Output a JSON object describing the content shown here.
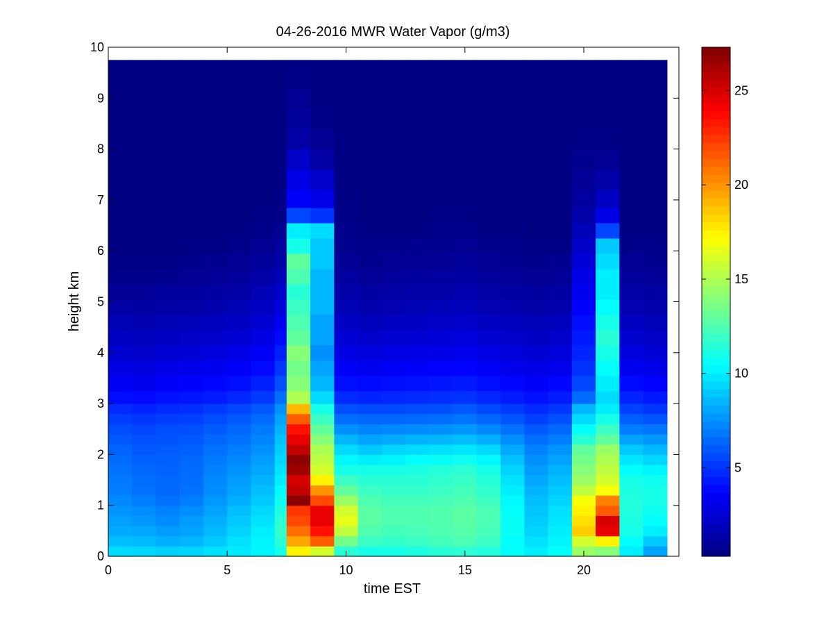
{
  "chart_data": {
    "type": "heatmap",
    "title": "04-26-2016 MWR Water Vapor (g/m3)",
    "xlabel": "time EST",
    "ylabel": "height km",
    "xlim": [
      0,
      24
    ],
    "ylim": [
      0,
      10
    ],
    "x_ticks": [
      0,
      5,
      10,
      15,
      20
    ],
    "y_ticks": [
      0,
      1,
      2,
      3,
      4,
      5,
      6,
      7,
      8,
      9,
      10
    ],
    "colormap": "jet",
    "colorbar": {
      "min": 0.3,
      "max": 27.3,
      "ticks": [
        5,
        10,
        15,
        20,
        25
      ]
    },
    "time_bin_edges": [
      0,
      1,
      2,
      3,
      4,
      5,
      6,
      7,
      7.5,
      8.5,
      9.5,
      10.5,
      11.5,
      12.5,
      13.5,
      14.5,
      15.5,
      16.5,
      17.5,
      18.5,
      19.5,
      20.5,
      21.5,
      22.5,
      23.5
    ],
    "height_levels_km": [
      0.1,
      0.3,
      0.5,
      0.7,
      0.9,
      1.1,
      1.3,
      1.5,
      1.7,
      1.9,
      2.1,
      2.3,
      2.5,
      2.7,
      2.9,
      3.1,
      3.4,
      3.7,
      4.0,
      4.3,
      4.6,
      4.9,
      5.2,
      5.5,
      5.8,
      6.1,
      6.4,
      6.7,
      7.0,
      7.4,
      7.8,
      8.2,
      8.6,
      9.0,
      9.4
    ],
    "height_bin_edges_km": [
      0,
      0.2,
      0.4,
      0.6,
      0.8,
      1.0,
      1.2,
      1.4,
      1.6,
      1.8,
      2.0,
      2.2,
      2.4,
      2.6,
      2.8,
      3.0,
      3.25,
      3.55,
      3.85,
      4.15,
      4.45,
      4.75,
      5.05,
      5.35,
      5.65,
      5.95,
      6.25,
      6.55,
      6.85,
      7.2,
      7.6,
      8.0,
      8.4,
      8.8,
      9.2,
      9.75
    ],
    "values_by_time_column": [
      [
        9.5,
        8.7,
        8.2,
        7.9,
        7.6,
        7.3,
        7.0,
        6.9,
        6.7,
        6.5,
        6.3,
        6.0,
        5.7,
        5.3,
        4.8,
        4.0,
        3.4,
        2.9,
        2.4,
        2.0,
        1.7,
        1.3,
        0.9,
        0.6,
        0.5,
        0.4,
        0.4,
        0.4,
        0.4,
        0.4,
        0.4,
        0.4,
        0.4,
        0.4,
        0.4
      ],
      [
        9.4,
        8.6,
        8.1,
        7.7,
        7.4,
        7.0,
        6.7,
        6.6,
        6.4,
        6.2,
        6.0,
        5.8,
        5.5,
        5.1,
        4.6,
        3.9,
        3.3,
        2.8,
        2.3,
        1.9,
        1.6,
        1.2,
        0.9,
        0.6,
        0.5,
        0.4,
        0.4,
        0.4,
        0.4,
        0.4,
        0.4,
        0.4,
        0.4,
        0.4,
        0.4
      ],
      [
        9.2,
        8.3,
        7.8,
        7.4,
        7.1,
        6.7,
        6.4,
        6.4,
        6.3,
        6.2,
        6.1,
        5.9,
        5.7,
        5.3,
        4.8,
        4.1,
        3.5,
        3.0,
        2.5,
        2.1,
        1.7,
        1.3,
        1.0,
        0.7,
        0.5,
        0.4,
        0.4,
        0.4,
        0.4,
        0.4,
        0.4,
        0.4,
        0.4,
        0.4,
        0.4
      ],
      [
        9.3,
        8.5,
        8.0,
        7.8,
        7.4,
        7.0,
        6.7,
        6.6,
        6.5,
        6.4,
        6.2,
        6.0,
        5.8,
        5.4,
        4.9,
        4.2,
        3.6,
        3.1,
        2.6,
        2.2,
        1.8,
        1.4,
        1.1,
        0.8,
        0.6,
        0.5,
        0.4,
        0.4,
        0.4,
        0.4,
        0.4,
        0.4,
        0.4,
        0.4,
        0.4
      ],
      [
        9.6,
        9.0,
        8.6,
        8.3,
        8.0,
        7.7,
        7.4,
        7.3,
        7.1,
        6.9,
        6.7,
        6.4,
        6.1,
        5.7,
        5.2,
        4.4,
        3.8,
        3.3,
        2.8,
        2.3,
        1.9,
        1.5,
        1.2,
        0.9,
        0.7,
        0.5,
        0.4,
        0.4,
        0.4,
        0.4,
        0.4,
        0.4,
        0.4,
        0.4,
        0.4
      ],
      [
        9.9,
        9.6,
        9.3,
        9.0,
        8.7,
        8.3,
        8.0,
        7.8,
        7.6,
        7.3,
        7.0,
        6.7,
        6.4,
        6.0,
        5.5,
        4.7,
        4.0,
        3.5,
        3.0,
        2.5,
        2.1,
        1.7,
        1.3,
        1.0,
        0.8,
        0.6,
        0.5,
        0.4,
        0.4,
        0.4,
        0.4,
        0.4,
        0.4,
        0.4,
        0.4
      ],
      [
        10.2,
        10.2,
        10.0,
        9.7,
        9.4,
        9.0,
        8.7,
        8.4,
        8.1,
        7.8,
        7.5,
        7.2,
        6.9,
        6.5,
        6.0,
        5.2,
        4.5,
        3.9,
        3.4,
        2.9,
        2.5,
        2.1,
        1.7,
        1.3,
        1.0,
        0.8,
        0.6,
        0.5,
        0.4,
        0.4,
        0.4,
        0.4,
        0.4,
        0.4,
        0.4
      ],
      [
        11.0,
        11.5,
        11.8,
        11.6,
        11.2,
        10.8,
        10.4,
        10.0,
        9.7,
        9.4,
        9.1,
        8.8,
        8.4,
        8.0,
        7.5,
        6.6,
        5.8,
        5.1,
        4.5,
        3.9,
        3.3,
        2.8,
        2.3,
        1.8,
        1.4,
        1.1,
        0.8,
        0.6,
        0.5,
        0.4,
        0.4,
        0.4,
        0.4,
        0.4,
        0.4
      ],
      [
        17.5,
        19.5,
        21.0,
        22.0,
        22.5,
        27.0,
        25.5,
        25.0,
        26.5,
        27.0,
        25.5,
        24.5,
        23.5,
        21.5,
        19.0,
        15.0,
        14.0,
        13.5,
        14.0,
        13.0,
        12.5,
        12.0,
        11.5,
        12.5,
        13.0,
        11.0,
        10.0,
        5.5,
        3.5,
        3.0,
        2.2,
        1.3,
        1.0,
        0.8,
        0.5
      ],
      [
        16.0,
        21.5,
        23.5,
        24.5,
        24.5,
        22.0,
        20.0,
        17.5,
        16.0,
        15.5,
        15.0,
        14.0,
        13.0,
        12.0,
        11.0,
        9.5,
        8.5,
        8.0,
        7.5,
        8.0,
        8.0,
        8.5,
        8.5,
        8.5,
        9.0,
        9.0,
        9.5,
        5.0,
        3.0,
        2.3,
        1.3,
        0.8,
        0.5,
        0.4,
        0.4
      ],
      [
        11.5,
        13.5,
        15.5,
        16.5,
        16.0,
        14.5,
        13.0,
        12.0,
        11.0,
        10.3,
        9.5,
        8.5,
        7.5,
        6.6,
        5.8,
        4.8,
        4.0,
        3.4,
        2.9,
        2.5,
        2.1,
        1.7,
        1.4,
        1.1,
        0.9,
        0.7,
        0.6,
        0.5,
        0.5,
        0.4,
        0.4,
        0.4,
        0.4,
        0.4,
        0.4
      ],
      [
        11.0,
        12.0,
        12.5,
        12.8,
        12.8,
        12.5,
        12.0,
        11.5,
        11.0,
        10.0,
        9.0,
        8.0,
        7.2,
        6.4,
        5.6,
        4.6,
        3.9,
        3.3,
        2.8,
        2.3,
        1.9,
        1.5,
        1.2,
        0.9,
        0.7,
        0.6,
        0.5,
        0.4,
        0.4,
        0.4,
        0.4,
        0.4,
        0.4,
        0.4,
        0.4
      ],
      [
        11.0,
        11.8,
        12.2,
        12.5,
        12.5,
        12.2,
        11.8,
        11.5,
        11.0,
        10.2,
        9.3,
        8.2,
        7.3,
        6.4,
        5.6,
        4.7,
        4.0,
        3.4,
        2.9,
        2.4,
        2.0,
        1.6,
        1.3,
        1.0,
        0.8,
        0.6,
        0.5,
        0.4,
        0.4,
        0.4,
        0.4,
        0.4,
        0.4,
        0.4,
        0.4
      ],
      [
        11.2,
        12.0,
        12.3,
        12.5,
        12.5,
        12.2,
        11.8,
        11.5,
        11.2,
        10.5,
        9.5,
        8.4,
        7.4,
        6.5,
        5.7,
        4.8,
        4.1,
        3.5,
        3.0,
        2.5,
        2.1,
        1.7,
        1.4,
        1.1,
        0.8,
        0.7,
        0.5,
        0.4,
        0.4,
        0.4,
        0.4,
        0.4,
        0.4,
        0.4,
        0.4
      ],
      [
        11.5,
        12.2,
        12.5,
        12.6,
        12.6,
        12.3,
        12.0,
        11.7,
        11.4,
        10.6,
        9.6,
        8.5,
        7.5,
        6.6,
        5.8,
        4.9,
        4.2,
        3.6,
        3.1,
        2.6,
        2.2,
        1.8,
        1.4,
        1.1,
        0.9,
        0.7,
        0.6,
        0.5,
        0.4,
        0.4,
        0.4,
        0.4,
        0.4,
        0.4,
        0.4
      ],
      [
        11.6,
        12.4,
        12.7,
        12.8,
        12.8,
        12.5,
        12.2,
        11.9,
        11.6,
        10.8,
        9.8,
        8.7,
        7.7,
        6.8,
        6.0,
        5.0,
        4.3,
        3.7,
        3.2,
        2.7,
        2.3,
        1.9,
        1.5,
        1.2,
        1.0,
        0.8,
        0.6,
        0.5,
        0.4,
        0.4,
        0.4,
        0.4,
        0.4,
        0.4,
        0.4
      ],
      [
        11.3,
        12.0,
        12.3,
        12.4,
        12.4,
        12.1,
        11.7,
        11.4,
        11.0,
        10.3,
        9.4,
        8.3,
        7.3,
        6.4,
        5.6,
        4.7,
        4.0,
        3.4,
        2.9,
        2.4,
        2.0,
        1.6,
        1.3,
        1.0,
        0.8,
        0.6,
        0.5,
        0.4,
        0.4,
        0.4,
        0.4,
        0.4,
        0.4,
        0.4,
        0.4
      ],
      [
        10.5,
        10.5,
        10.6,
        10.6,
        10.5,
        10.3,
        10.0,
        9.7,
        9.3,
        8.8,
        8.2,
        7.4,
        6.7,
        5.9,
        5.2,
        4.4,
        3.8,
        3.2,
        2.7,
        2.3,
        1.9,
        1.5,
        1.2,
        0.9,
        0.7,
        0.6,
        0.5,
        0.4,
        0.4,
        0.4,
        0.4,
        0.4,
        0.4,
        0.4,
        0.4
      ],
      [
        10.0,
        9.6,
        9.3,
        9.1,
        8.9,
        8.7,
        8.4,
        8.1,
        7.8,
        7.5,
        7.1,
        6.6,
        6.0,
        5.4,
        4.8,
        4.1,
        3.5,
        3.0,
        2.5,
        2.1,
        1.8,
        1.4,
        1.1,
        0.8,
        0.6,
        0.5,
        0.4,
        0.4,
        0.4,
        0.4,
        0.4,
        0.4,
        0.4,
        0.4,
        0.4
      ],
      [
        10.5,
        10.2,
        10.0,
        9.8,
        9.6,
        9.3,
        9.0,
        8.7,
        8.4,
        8.0,
        7.6,
        7.0,
        6.4,
        5.8,
        5.1,
        4.4,
        3.8,
        3.2,
        2.7,
        2.3,
        1.9,
        1.5,
        1.2,
        0.9,
        0.7,
        0.5,
        0.4,
        0.4,
        0.4,
        0.4,
        0.4,
        0.4,
        0.4,
        0.4,
        0.4
      ],
      [
        14.5,
        16.0,
        18.5,
        18.0,
        17.5,
        17.0,
        15.5,
        14.5,
        14.0,
        13.5,
        13.0,
        11.5,
        10.5,
        9.5,
        8.5,
        6.5,
        5.5,
        5.0,
        4.6,
        4.3,
        4.0,
        3.6,
        3.3,
        3.0,
        2.6,
        2.2,
        1.8,
        1.4,
        1.1,
        0.9,
        0.7,
        0.5,
        0.4,
        0.4,
        0.4
      ],
      [
        14.0,
        17.5,
        24.5,
        25.0,
        21.5,
        20.5,
        17.0,
        16.0,
        15.5,
        15.0,
        14.5,
        13.0,
        12.0,
        11.0,
        10.0,
        9.5,
        10.0,
        10.5,
        11.0,
        11.5,
        11.0,
        10.5,
        10.0,
        10.0,
        9.5,
        9.0,
        5.5,
        3.0,
        2.0,
        1.4,
        0.8,
        0.5,
        0.4,
        0.4,
        0.4
      ],
      [
        10.0,
        10.5,
        11.0,
        11.2,
        11.3,
        11.3,
        11.2,
        11.0,
        10.5,
        9.8,
        9.0,
        8.0,
        7.0,
        6.2,
        5.4,
        4.6,
        3.9,
        3.3,
        2.8,
        2.4,
        2.0,
        1.6,
        1.3,
        1.0,
        0.8,
        0.6,
        0.5,
        0.4,
        0.4,
        0.4,
        0.4,
        0.4,
        0.4,
        0.4,
        0.4
      ],
      [
        8.0,
        9.0,
        10.0,
        10.5,
        10.8,
        11.0,
        11.0,
        10.8,
        10.2,
        9.4,
        8.6,
        7.7,
        6.8,
        5.9,
        5.1,
        4.3,
        3.7,
        3.1,
        2.6,
        2.2,
        1.8,
        1.5,
        1.2,
        0.9,
        0.7,
        0.6,
        0.5,
        0.4,
        0.4,
        0.4,
        0.4,
        0.4,
        0.4,
        0.4,
        0.4
      ]
    ]
  }
}
